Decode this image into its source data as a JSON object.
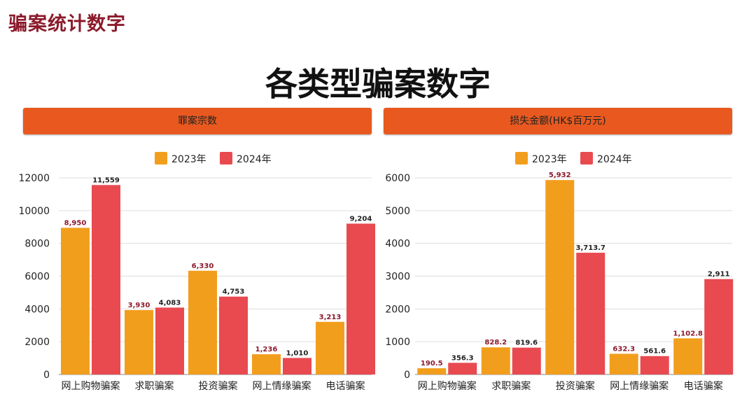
{
  "slide_title": "骗案统计数字",
  "main_title": "各类型骗案数字",
  "colors": {
    "y2023": "#f29e1d",
    "y2024": "#e84a50",
    "header": "#e9591f",
    "label_2023": "#8b1a2b",
    "label_2024": "#222222"
  },
  "chart_data": [
    {
      "type": "bar",
      "title": "罪案宗数",
      "categories": [
        "网上购物骗案",
        "求职骗案",
        "投资骗案",
        "网上情缘骗案",
        "电话骗案"
      ],
      "series": [
        {
          "name": "2023年",
          "values": [
            8950,
            3930,
            6330,
            1236,
            3213
          ],
          "labels": [
            "8,950",
            "3,930",
            "6,330",
            "1,236",
            "3,213"
          ]
        },
        {
          "name": "2024年",
          "values": [
            11559,
            4083,
            4753,
            1010,
            9204
          ],
          "labels": [
            "11,559",
            "4,083",
            "4,753",
            "1,010",
            "9,204"
          ]
        }
      ],
      "ylim": [
        0,
        12000
      ],
      "yticks": [
        0,
        2000,
        4000,
        6000,
        8000,
        10000,
        12000
      ],
      "ytick_labels": [
        "0",
        "2000",
        "4000",
        "6000",
        "8000",
        "10000",
        "12000"
      ],
      "grid": true,
      "legend": "top-center"
    },
    {
      "type": "bar",
      "title": "损失金额(HK$百万元)",
      "categories": [
        "网上购物骗案",
        "求职骗案",
        "投资骗案",
        "网上情缘骗案",
        "电话骗案"
      ],
      "series": [
        {
          "name": "2023年",
          "values": [
            190.5,
            828.2,
            5932,
            632.3,
            1102.8
          ],
          "labels": [
            "190.5",
            "828.2",
            "5,932",
            "632.3",
            "1,102.8"
          ]
        },
        {
          "name": "2024年",
          "values": [
            356.3,
            819.6,
            3713.7,
            561.6,
            2911
          ],
          "labels": [
            "356.3",
            "819.6",
            "3,713.7",
            "561.6",
            "2,911"
          ]
        }
      ],
      "ylim": [
        0,
        6000
      ],
      "yticks": [
        0,
        1000,
        2000,
        3000,
        4000,
        5000,
        6000
      ],
      "ytick_labels": [
        "0",
        "1000",
        "2000",
        "3000",
        "4000",
        "5000",
        "6000"
      ],
      "grid": true,
      "legend": "top-center"
    }
  ]
}
